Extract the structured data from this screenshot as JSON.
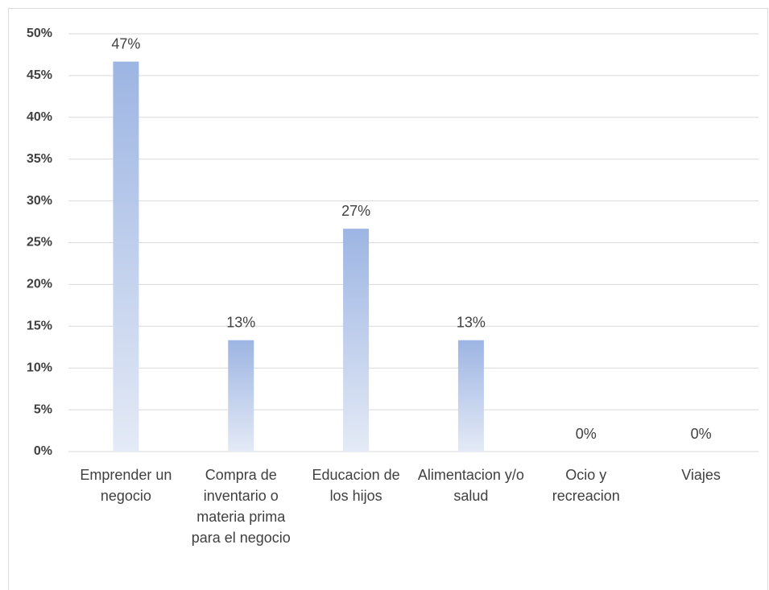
{
  "chart_data": {
    "type": "bar",
    "categories": [
      "Emprender un negocio",
      "Compra de inventario o materia prima para el negocio",
      "Educacion de los hijos",
      "Alimentacion y/o salud",
      "Ocio y recreacion",
      "Viajes"
    ],
    "values": [
      46.67,
      13.33,
      26.67,
      13.33,
      0,
      0
    ],
    "value_labels": [
      "47%",
      "13%",
      "27%",
      "13%",
      "0%",
      "0%"
    ],
    "color": "#9db5e3",
    "ylim": [
      0,
      50
    ],
    "yticks": [
      {
        "value": 0,
        "label": "0%"
      },
      {
        "value": 5,
        "label": "5%"
      },
      {
        "value": 10,
        "label": "10%"
      },
      {
        "value": 15,
        "label": "15%"
      },
      {
        "value": 20,
        "label": "20%"
      },
      {
        "value": 25,
        "label": "25%"
      },
      {
        "value": 30,
        "label": "30%"
      },
      {
        "value": 35,
        "label": "35%"
      },
      {
        "value": 40,
        "label": "40%"
      },
      {
        "value": 45,
        "label": "45%"
      },
      {
        "value": 50,
        "label": "50%"
      }
    ],
    "grid": true
  }
}
